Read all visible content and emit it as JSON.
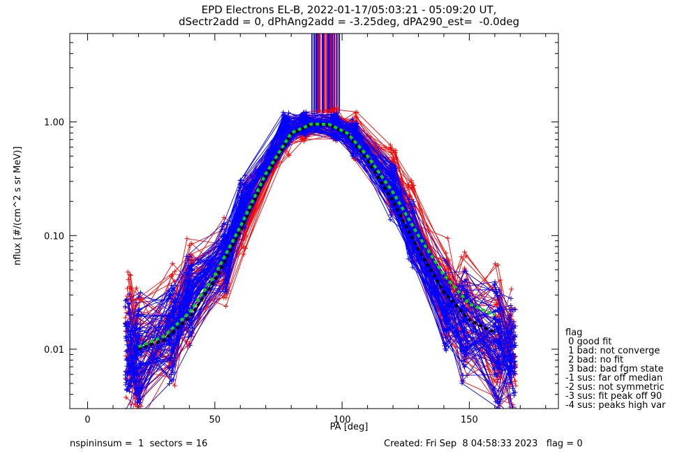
{
  "chart_data": {
    "type": "line",
    "title_line1": "EPD Electrons EL-B, 2022-01-17/05:03:21 - 05:09:20 UT,",
    "title_line2": "dSectr2add = 0, dPhAng2add = -3.25deg, dPA290_est=  -0.0deg",
    "xlabel": "PA [deg]",
    "ylabel": "nflux [#/(cm^2 s sr MeV)]",
    "xlim": [
      -7,
      185
    ],
    "ylim": [
      0.003,
      6.0
    ],
    "yscale": "log",
    "x_ticks": [
      0,
      50,
      100,
      150
    ],
    "x_tick_labels": [
      "0",
      "50",
      "100",
      "150"
    ],
    "y_ticks": [
      0.01,
      0.1,
      1.0
    ],
    "y_tick_labels": [
      "0.01",
      "0.10",
      "1.00"
    ],
    "grid": false,
    "colors": {
      "series_a": "#ff0000",
      "series_b": "#0000ff",
      "fit_green": "#00dd00",
      "fit_black": "#000000"
    },
    "pa_bins": [
      16,
      20,
      33,
      40,
      54,
      61,
      78,
      85,
      97,
      105,
      120,
      127,
      141,
      148,
      161,
      167
    ],
    "red_profile": [
      0.012,
      0.01,
      0.016,
      0.03,
      0.06,
      0.15,
      0.8,
      0.92,
      0.95,
      0.76,
      0.3,
      0.14,
      0.032,
      0.02,
      0.012,
      0.011
    ],
    "blue_profile": [
      0.01,
      0.009,
      0.014,
      0.028,
      0.07,
      0.18,
      0.86,
      0.96,
      0.9,
      0.74,
      0.25,
      0.11,
      0.024,
      0.016,
      0.011,
      0.01
    ],
    "fit_green": {
      "x": [
        20,
        30,
        40,
        50,
        60,
        70,
        80,
        88,
        95,
        102,
        110,
        120,
        130,
        140,
        150,
        160
      ],
      "y": [
        0.0105,
        0.013,
        0.021,
        0.045,
        0.12,
        0.35,
        0.8,
        0.96,
        0.95,
        0.8,
        0.5,
        0.24,
        0.1,
        0.045,
        0.025,
        0.02
      ]
    },
    "fit_black": {
      "x": [
        20,
        30,
        40,
        50,
        60,
        70,
        80,
        88,
        95,
        102,
        110,
        120,
        130,
        140,
        150,
        160
      ],
      "y": [
        0.01,
        0.012,
        0.019,
        0.04,
        0.11,
        0.33,
        0.78,
        0.95,
        0.94,
        0.78,
        0.46,
        0.2,
        0.075,
        0.032,
        0.018,
        0.014
      ]
    },
    "spikes": {
      "x_start": 88,
      "x_end": 99,
      "y_base": 1.2,
      "y_top": 6.0
    }
  },
  "legend": {
    "title": "flag",
    "items": [
      " 0 good fit",
      " 1 bad: not converge",
      " 2 bad: no fit",
      " 3 bad: bad fgm state",
      "-1 sus: far off median",
      "-2 sus: not symmetric",
      "-3 sus: fit peak off 90",
      "-4 sus: peaks high var"
    ]
  },
  "footer": {
    "left": "nspininsum =  1  sectors = 16",
    "right": "Created: Fri Sep  8 04:58:33 2023   flag = 0"
  }
}
